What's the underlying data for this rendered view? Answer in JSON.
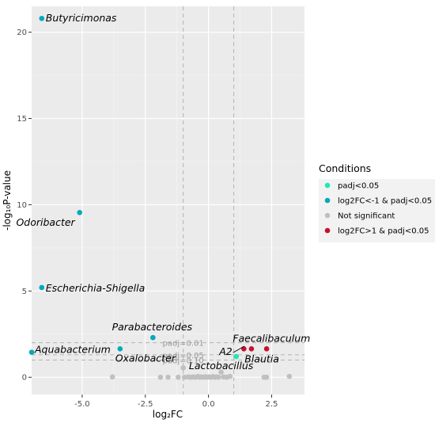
{
  "chart_data": {
    "type": "scatter",
    "title": "",
    "xlabel": "log₂FC",
    "ylabel": "-log₁₀P-value",
    "xlim": [
      -7.0,
      3.8
    ],
    "ylim": [
      -1.0,
      21.5
    ],
    "x_ticks": [
      -5.0,
      -2.5,
      0.0,
      2.5
    ],
    "x_tick_labels": [
      "-5.0",
      "-2.5",
      "0.0",
      "2.5"
    ],
    "y_ticks": [
      0,
      5,
      10,
      15,
      20
    ],
    "y_tick_labels": [
      "0",
      "5",
      "10",
      "15",
      "20"
    ],
    "grid": true,
    "vlines": [
      -1,
      1
    ],
    "hlines": [
      {
        "y": 2.0,
        "label": "padj=0.01"
      },
      {
        "y": 1.3,
        "label": "padj=0.05"
      },
      {
        "y": 1.0,
        "label": "padj=0.10"
      }
    ],
    "legend": {
      "title": "Conditions",
      "position": "right",
      "entries": [
        {
          "label": "padj<0.05",
          "color": "#1de9b6"
        },
        {
          "label": "log2FC<-1 & padj<0.05",
          "color": "#00a9bc"
        },
        {
          "label": "Not significant",
          "color": "#c0c0c0"
        },
        {
          "label": "log2FC>1 & padj<0.05",
          "color": "#c8102e"
        }
      ]
    },
    "series": [
      {
        "name": "log2FC<-1 & padj<0.05",
        "color": "#00a9bc",
        "points": [
          {
            "x": -6.6,
            "y": 20.8,
            "label": "Butyricimonas"
          },
          {
            "x": -5.1,
            "y": 9.55,
            "label": "Odoribacter"
          },
          {
            "x": -6.6,
            "y": 5.2,
            "label": "Escherichia-Shigella"
          },
          {
            "x": -2.2,
            "y": 2.3,
            "label": "Parabacteroides"
          },
          {
            "x": -7.0,
            "y": 1.45,
            "label": "Aquabacterium"
          },
          {
            "x": -3.5,
            "y": 1.65,
            "label": "Oxalobacter"
          }
        ]
      },
      {
        "name": "padj<0.05",
        "color": "#1de9b6",
        "points": [
          {
            "x": 1.1,
            "y": 1.2,
            "label": "A2"
          }
        ]
      },
      {
        "name": "log2FC>1 & padj<0.05",
        "color": "#c8102e",
        "points": [
          {
            "x": 1.4,
            "y": 1.65,
            "label": "Faecalibaculum"
          },
          {
            "x": 1.7,
            "y": 1.65,
            "label": ""
          },
          {
            "x": 2.3,
            "y": 1.65,
            "label": "Blautia"
          }
        ]
      },
      {
        "name": "Not significant",
        "color": "#c0c0c0",
        "points": [
          {
            "x": -3.8,
            "y": 0.02
          },
          {
            "x": -1.9,
            "y": 0.0
          },
          {
            "x": -1.6,
            "y": 0.0
          },
          {
            "x": -1.2,
            "y": 0.0
          },
          {
            "x": -1.0,
            "y": 0.55
          },
          {
            "x": -0.95,
            "y": 0.0
          },
          {
            "x": -0.8,
            "y": 0.02
          },
          {
            "x": -0.7,
            "y": 0.0
          },
          {
            "x": -0.6,
            "y": 0.02
          },
          {
            "x": -0.5,
            "y": 0.0
          },
          {
            "x": -0.42,
            "y": 0.05
          },
          {
            "x": -0.35,
            "y": 0.0
          },
          {
            "x": -0.28,
            "y": 0.02
          },
          {
            "x": -0.2,
            "y": 0.0
          },
          {
            "x": -0.12,
            "y": 0.03
          },
          {
            "x": -0.05,
            "y": 0.0
          },
          {
            "x": 0.02,
            "y": 0.02
          },
          {
            "x": 0.1,
            "y": 0.0
          },
          {
            "x": 0.18,
            "y": 0.04
          },
          {
            "x": 0.25,
            "y": 0.0
          },
          {
            "x": 0.32,
            "y": 0.02
          },
          {
            "x": 0.4,
            "y": 0.0
          },
          {
            "x": 0.5,
            "y": 0.3
          },
          {
            "x": 0.6,
            "y": 0.02
          },
          {
            "x": 0.72,
            "y": 0.0
          },
          {
            "x": 0.85,
            "y": 0.05
          },
          {
            "x": 2.2,
            "y": 0.0
          },
          {
            "x": 2.3,
            "y": 0.0
          },
          {
            "x": 3.2,
            "y": 0.05
          }
        ]
      }
    ]
  }
}
